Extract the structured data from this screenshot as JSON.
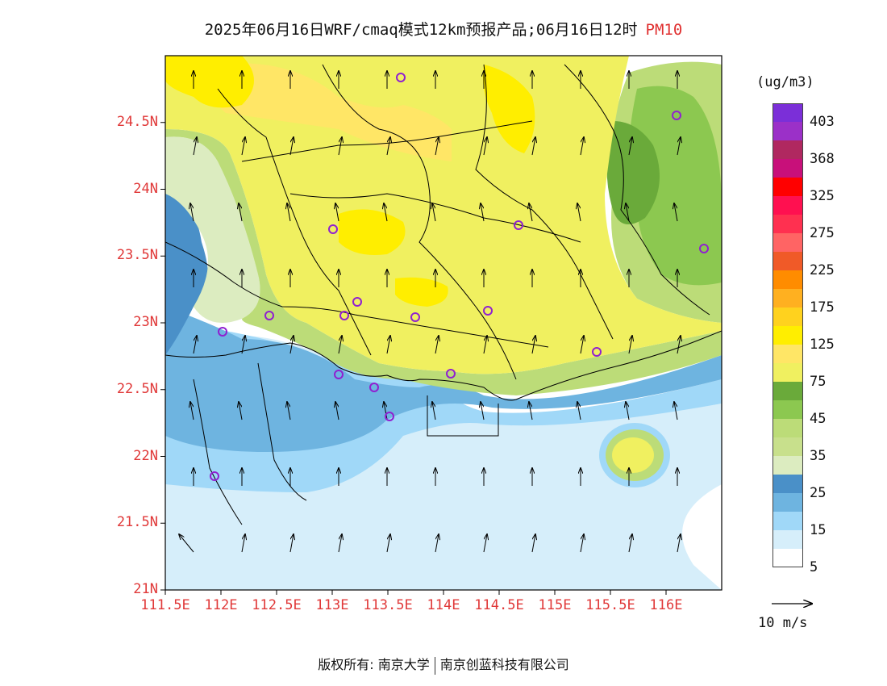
{
  "title": {
    "main": "2025年06月16日WRF/cmaq模式12km预报产品;06月16日12时",
    "pollutant": "PM10"
  },
  "latitudes": [
    "24.5N",
    "24N",
    "23.5N",
    "23N",
    "22.5N",
    "22N",
    "21.5N",
    "21N"
  ],
  "longitudes": [
    "111.5E",
    "112E",
    "112.5E",
    "113E",
    "113.5E",
    "114E",
    "114.5E",
    "115E",
    "115.5E",
    "116E"
  ],
  "legend": {
    "unit": "(ug/m3)",
    "labels": [
      "403",
      "368",
      "325",
      "275",
      "225",
      "175",
      "125",
      "75",
      "45",
      "35",
      "25",
      "15",
      "5"
    ],
    "colors": [
      "#7b2fd8",
      "#9b30c8",
      "#b02860",
      "#c8107a",
      "#ff0000",
      "#ff1050",
      "#ff3050",
      "#ff6464",
      "#f05a28",
      "#ff8c00",
      "#ffb020",
      "#ffd21e",
      "#ffee00",
      "#ffe666",
      "#f0f060",
      "#6aaa3a",
      "#8cc850",
      "#bcdc78",
      "#c8e08c",
      "#dcecc0",
      "#4a90c8",
      "#6eb4e0",
      "#a0d8f8",
      "#d6eefa",
      "#ffffff"
    ]
  },
  "wind_key": "10 m/s",
  "footer": {
    "left": "版权所有: 南京大学",
    "right": "南京创蓝科技有限公司"
  },
  "map": {
    "lon_range": [
      111.5,
      116.5
    ],
    "lat_range": [
      21.0,
      25.0
    ],
    "station_color": "#9020d0",
    "arrow_color": "#000000",
    "zone_colors": [
      "#ffffff",
      "#d6eefa",
      "#a0d8f8",
      "#6eb4e0",
      "#4a90c8",
      "#dcecc0",
      "#bcdc78",
      "#8cc850",
      "#6aaa3a",
      "#f0f060",
      "#ffe666",
      "#ffee00"
    ]
  }
}
